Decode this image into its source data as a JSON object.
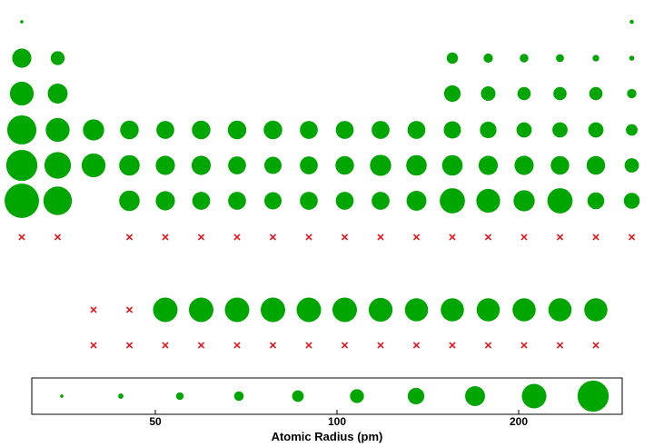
{
  "chart_data": {
    "type": "scatter",
    "description_units": "pm",
    "xlabel": "Atomic Radius (pm)",
    "legend_ticks": [
      {
        "value": 50,
        "label": "50"
      },
      {
        "value": 100,
        "label": "100"
      },
      {
        "value": 200,
        "label": "200"
      }
    ],
    "legend_sizes": [
      25,
      40,
      57,
      72,
      88,
      105,
      125,
      150,
      185,
      235
    ],
    "main_table": [
      [
        25,
        null,
        null,
        null,
        null,
        null,
        null,
        null,
        null,
        null,
        null,
        null,
        null,
        null,
        null,
        null,
        null,
        31
      ],
      [
        145,
        105,
        null,
        null,
        null,
        null,
        null,
        null,
        null,
        null,
        null,
        null,
        85,
        70,
        65,
        60,
        50,
        38
      ],
      [
        180,
        150,
        null,
        null,
        null,
        null,
        null,
        null,
        null,
        null,
        null,
        null,
        125,
        110,
        100,
        100,
        100,
        71
      ],
      [
        220,
        180,
        160,
        140,
        135,
        140,
        140,
        140,
        135,
        135,
        135,
        135,
        130,
        125,
        115,
        115,
        115,
        88
      ],
      [
        235,
        200,
        180,
        155,
        145,
        145,
        135,
        130,
        135,
        140,
        160,
        155,
        155,
        145,
        145,
        140,
        140,
        108
      ],
      [
        260,
        215,
        null,
        155,
        145,
        135,
        135,
        130,
        135,
        135,
        135,
        150,
        190,
        180,
        160,
        190,
        127,
        120
      ],
      [
        "x",
        "x",
        null,
        "x",
        "x",
        "x",
        "x",
        "x",
        "x",
        "x",
        "x",
        "x",
        "x",
        "x",
        "x",
        "x",
        "x",
        "x"
      ]
    ],
    "lanthanides": [
      "x",
      "x",
      185,
      185,
      185,
      185,
      185,
      185,
      180,
      175,
      175,
      175,
      175,
      175,
      175
    ],
    "actinides": [
      "x",
      "x",
      "x",
      "x",
      "x",
      "x",
      "x",
      "x",
      "x",
      "x",
      "x",
      "x",
      "x",
      "x",
      "x"
    ],
    "markers": {
      "dot_color": "#00a600",
      "missing_color": "#e8141b",
      "missing_symbol": "x"
    }
  }
}
